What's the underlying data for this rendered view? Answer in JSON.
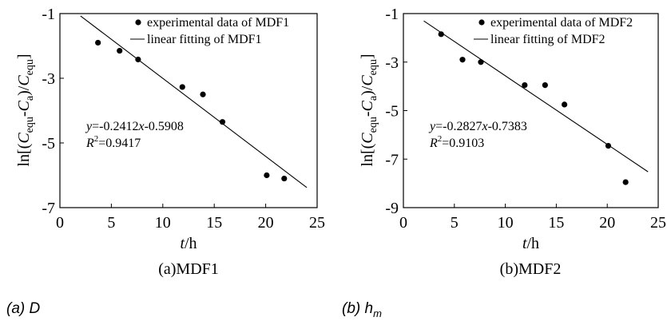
{
  "chart_data": [
    {
      "type": "scatter",
      "caption": "(a)MDF1",
      "xlabel": "t/h",
      "ylabel": "ln[(C_equ-C_a)/C_equ]",
      "xlim": [
        0,
        25
      ],
      "ylim": [
        -7,
        -1
      ],
      "xticks": [
        0,
        5,
        10,
        15,
        20,
        25
      ],
      "yticks": [
        -1,
        -3,
        -5,
        -7
      ],
      "series": [
        {
          "name": "experimental data of MDF1",
          "kind": "points",
          "x": [
            3.7,
            5.8,
            7.6,
            11.9,
            13.9,
            15.8,
            20.1,
            21.8
          ],
          "y": [
            -1.9,
            -2.15,
            -2.42,
            -3.27,
            -3.5,
            -4.35,
            -6.0,
            -6.1
          ]
        },
        {
          "name": "linear fitting of MDF1",
          "kind": "line",
          "slope": -0.2412,
          "intercept": -0.5908,
          "x_range": [
            2.0,
            24.0
          ]
        }
      ],
      "equation": "y=-0.2412x-0.5908",
      "r2": "R2=0.9417",
      "legend_position": "top-right"
    },
    {
      "type": "scatter",
      "caption": "(b)MDF2",
      "xlabel": "t/h",
      "ylabel": "ln[(C_equ-C_a)/C_equ]",
      "xlim": [
        0,
        25
      ],
      "ylim": [
        -9,
        -1
      ],
      "xticks": [
        0,
        5,
        10,
        15,
        20,
        25
      ],
      "yticks": [
        -1,
        -3,
        -5,
        -7,
        -9
      ],
      "series": [
        {
          "name": "experimental data of MDF2",
          "kind": "points",
          "x": [
            3.7,
            5.8,
            7.6,
            11.9,
            13.9,
            15.8,
            20.1,
            21.8
          ],
          "y": [
            -1.85,
            -2.9,
            -3.0,
            -3.95,
            -3.95,
            -4.75,
            -6.45,
            -7.95
          ]
        },
        {
          "name": "linear fitting of MDF2",
          "kind": "line",
          "slope": -0.2827,
          "intercept": -0.7383,
          "x_range": [
            2.0,
            24.0
          ]
        }
      ],
      "equation": "y=-0.2827x-0.7383",
      "r2": "R2=0.9103",
      "legend_position": "top-right"
    }
  ],
  "subcaptions": {
    "left_letter": "(a)",
    "left_symbol": "D",
    "right_letter": "(b)",
    "right_symbol": "h",
    "right_subscript": "m"
  }
}
